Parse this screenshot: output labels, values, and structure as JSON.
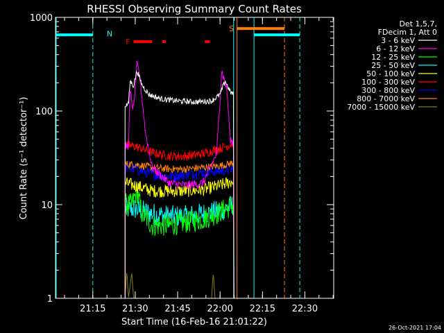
{
  "chart_data": {
    "type": "line",
    "title": "RHESSI Observing Summary Count Rates",
    "xlabel": "Start Time (16-Feb-16 21:01:22)",
    "ylabel": "Count Rate (s⁻¹ detector⁻¹)",
    "yscale": "log",
    "ylim": [
      1,
      1000
    ],
    "xlim_minutes": [
      21.03,
      22.67
    ],
    "x_ticks": [
      {
        "v": 21.25,
        "label": "21:15"
      },
      {
        "v": 21.5,
        "label": "21:30"
      },
      {
        "v": 21.75,
        "label": "21:45"
      },
      {
        "v": 22.0,
        "label": "22:00"
      },
      {
        "v": 22.25,
        "label": "22:15"
      },
      {
        "v": 22.5,
        "label": "22:30"
      }
    ],
    "y_ticks": [
      {
        "v": 1,
        "label": "1"
      },
      {
        "v": 10,
        "label": "10"
      },
      {
        "v": 100,
        "label": "100"
      },
      {
        "v": 1000,
        "label": "1000"
      }
    ],
    "legend_header": [
      "Det 1,5,7,",
      "FDecim 1, Att 0"
    ],
    "legend_position": "right",
    "timestamp": "26-Oct-2021 17:04",
    "data_start": 21.44,
    "data_end": 22.082,
    "series": [
      {
        "name": "3 - 6 keV",
        "color": "#ffffff",
        "values": [
          {
            "t": 21.44,
            "y": 115
          },
          {
            "t": 21.46,
            "y": 118
          },
          {
            "t": 21.47,
            "y": 210
          },
          {
            "t": 21.49,
            "y": 185
          },
          {
            "t": 21.51,
            "y": 270
          },
          {
            "t": 21.54,
            "y": 190
          },
          {
            "t": 21.58,
            "y": 150
          },
          {
            "t": 21.65,
            "y": 135
          },
          {
            "t": 21.75,
            "y": 128
          },
          {
            "t": 21.85,
            "y": 125
          },
          {
            "t": 21.95,
            "y": 128
          },
          {
            "t": 22.0,
            "y": 150
          },
          {
            "t": 22.03,
            "y": 210
          },
          {
            "t": 22.06,
            "y": 160
          },
          {
            "t": 22.08,
            "y": 150
          }
        ]
      },
      {
        "name": "6 - 12 keV",
        "color": "#ff00ff",
        "values": [
          {
            "t": 21.44,
            "y": 42
          },
          {
            "t": 21.46,
            "y": 42
          },
          {
            "t": 21.47,
            "y": 160
          },
          {
            "t": 21.49,
            "y": 100
          },
          {
            "t": 21.51,
            "y": 320
          },
          {
            "t": 21.53,
            "y": 210
          },
          {
            "t": 21.56,
            "y": 60
          },
          {
            "t": 21.6,
            "y": 25
          },
          {
            "t": 21.7,
            "y": 17
          },
          {
            "t": 21.8,
            "y": 16
          },
          {
            "t": 21.9,
            "y": 17
          },
          {
            "t": 21.98,
            "y": 35
          },
          {
            "t": 22.01,
            "y": 270
          },
          {
            "t": 22.04,
            "y": 170
          },
          {
            "t": 22.06,
            "y": 50
          },
          {
            "t": 22.08,
            "y": 45
          }
        ]
      },
      {
        "name": "12 - 25 keV",
        "color": "#00ff00",
        "values": [
          {
            "t": 21.44,
            "y": 10
          },
          {
            "t": 21.48,
            "y": 10
          },
          {
            "t": 21.51,
            "y": 14
          },
          {
            "t": 21.54,
            "y": 8
          },
          {
            "t": 21.6,
            "y": 6
          },
          {
            "t": 21.7,
            "y": 6
          },
          {
            "t": 21.8,
            "y": 6.5
          },
          {
            "t": 21.9,
            "y": 7
          },
          {
            "t": 21.98,
            "y": 8
          },
          {
            "t": 22.03,
            "y": 9
          },
          {
            "t": 22.08,
            "y": 10
          }
        ]
      },
      {
        "name": "25 - 50 keV",
        "color": "#00ffff",
        "values": [
          {
            "t": 21.44,
            "y": 9
          },
          {
            "t": 21.5,
            "y": 9
          },
          {
            "t": 21.6,
            "y": 8
          },
          {
            "t": 21.7,
            "y": 7.5
          },
          {
            "t": 21.8,
            "y": 7.5
          },
          {
            "t": 21.9,
            "y": 8
          },
          {
            "t": 22.0,
            "y": 8.5
          },
          {
            "t": 22.08,
            "y": 10
          }
        ]
      },
      {
        "name": "50 - 100 keV",
        "color": "#ffff00",
        "values": [
          {
            "t": 21.44,
            "y": 17
          },
          {
            "t": 21.5,
            "y": 16
          },
          {
            "t": 21.6,
            "y": 14
          },
          {
            "t": 21.7,
            "y": 14
          },
          {
            "t": 21.8,
            "y": 14
          },
          {
            "t": 21.9,
            "y": 14.5
          },
          {
            "t": 22.0,
            "y": 16
          },
          {
            "t": 22.08,
            "y": 18
          }
        ]
      },
      {
        "name": "100 - 300 keV",
        "color": "#ff0000",
        "values": [
          {
            "t": 21.44,
            "y": 43
          },
          {
            "t": 21.5,
            "y": 42
          },
          {
            "t": 21.6,
            "y": 36
          },
          {
            "t": 21.7,
            "y": 33
          },
          {
            "t": 21.8,
            "y": 33
          },
          {
            "t": 21.9,
            "y": 35
          },
          {
            "t": 22.0,
            "y": 40
          },
          {
            "t": 22.08,
            "y": 45
          }
        ]
      },
      {
        "name": "300 - 800 keV",
        "color": "#0000ff",
        "values": [
          {
            "t": 21.44,
            "y": 25
          },
          {
            "t": 21.5,
            "y": 24
          },
          {
            "t": 21.6,
            "y": 21
          },
          {
            "t": 21.7,
            "y": 20
          },
          {
            "t": 21.8,
            "y": 21
          },
          {
            "t": 21.9,
            "y": 22
          },
          {
            "t": 22.0,
            "y": 23
          },
          {
            "t": 22.08,
            "y": 24
          }
        ]
      },
      {
        "name": "800 - 7000 keV",
        "color": "#ff8000",
        "values": [
          {
            "t": 21.44,
            "y": 27
          },
          {
            "t": 21.5,
            "y": 27
          },
          {
            "t": 21.6,
            "y": 25
          },
          {
            "t": 21.7,
            "y": 24
          },
          {
            "t": 21.8,
            "y": 24
          },
          {
            "t": 21.9,
            "y": 25
          },
          {
            "t": 22.0,
            "y": 26
          },
          {
            "t": 22.08,
            "y": 28
          }
        ]
      },
      {
        "name": "7000 - 15000 keV",
        "color": "#808000",
        "values": [
          {
            "t": 21.44,
            "y": 1
          },
          {
            "t": 21.45,
            "y": 2
          },
          {
            "t": 21.46,
            "y": 1
          },
          {
            "t": 21.48,
            "y": 1.9
          },
          {
            "t": 21.49,
            "y": 1
          },
          {
            "t": 21.6,
            "y": 1
          },
          {
            "t": 21.95,
            "y": 1
          },
          {
            "t": 21.96,
            "y": 1.9
          },
          {
            "t": 21.97,
            "y": 1
          },
          {
            "t": 22.08,
            "y": 1
          }
        ]
      }
    ],
    "flag_bars": [
      {
        "label": "F",
        "color": "#ff0000",
        "y": 550,
        "segments": [
          [
            21.49,
            21.6
          ],
          [
            21.66,
            21.68
          ],
          [
            21.91,
            21.94
          ]
        ]
      },
      {
        "label": "N",
        "color": "#00ffff",
        "y": 650,
        "segments": [
          [
            21.03,
            21.25
          ],
          [
            22.2,
            22.47
          ]
        ]
      },
      {
        "label": "S",
        "color": "#ff8000",
        "y": 760,
        "segments": [
          [
            22.1,
            22.38
          ]
        ]
      }
    ],
    "vlines": [
      {
        "t": 21.25,
        "color": "#00ffff",
        "dashed": true
      },
      {
        "t": 22.08,
        "color": "#00ffff",
        "dashed": false
      },
      {
        "t": 22.1,
        "color": "#ff8000",
        "dashed": false
      },
      {
        "t": 22.2,
        "color": "#00ffff",
        "dashed": false
      },
      {
        "t": 22.38,
        "color": "#ff8000",
        "dashed": true
      },
      {
        "t": 22.47,
        "color": "#00ffff",
        "dashed": true
      }
    ]
  }
}
